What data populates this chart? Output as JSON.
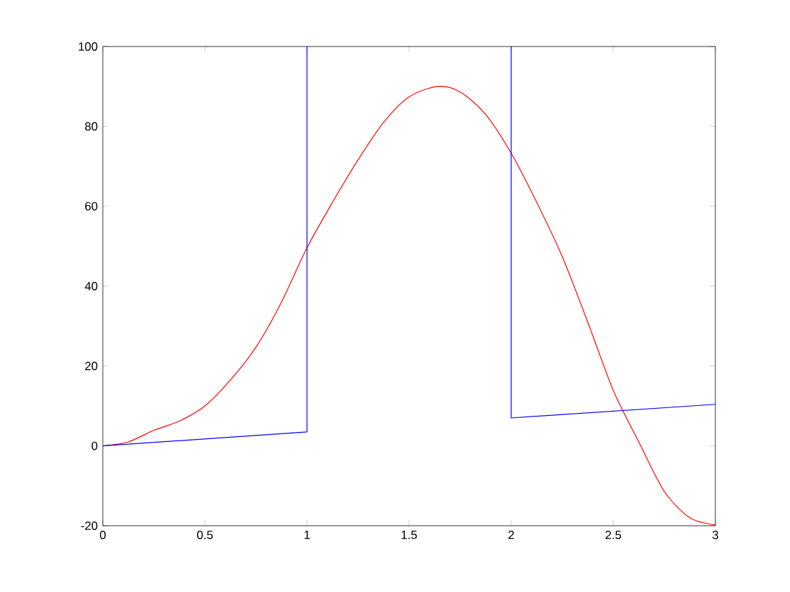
{
  "chart_data": {
    "type": "line",
    "xlim": [
      0,
      3
    ],
    "ylim": [
      -20,
      100
    ],
    "xticks": [
      0,
      0.5,
      1,
      1.5,
      2,
      2.5,
      3
    ],
    "yticks": [
      -20,
      0,
      20,
      40,
      60,
      80,
      100
    ],
    "grid": false,
    "line_style": "solid",
    "marker": "none",
    "series": [
      {
        "color": "#ff0000",
        "x": [
          0,
          0.125,
          0.25,
          0.375,
          0.5,
          0.625,
          0.75,
          0.875,
          1,
          1.125,
          1.25,
          1.375,
          1.5,
          1.64,
          1.75,
          1.875,
          2,
          2.125,
          2.25,
          2.375,
          2.5,
          2.625,
          2.75,
          2.875,
          3
        ],
        "values": [
          0,
          1,
          3.9,
          6.2,
          10,
          16.5,
          24.7,
          36,
          49.6,
          61,
          71.6,
          81,
          87.4,
          90,
          88.6,
          83,
          73.3,
          61,
          47.4,
          31,
          13.9,
          1,
          -11.4,
          -18,
          -19.8
        ]
      },
      {
        "color": "#0000ff",
        "x": [
          0,
          1,
          1,
          1.5,
          2,
          2,
          3
        ],
        "values": [
          0,
          3.5,
          100,
          null,
          100,
          7,
          10.4
        ]
      }
    ]
  }
}
